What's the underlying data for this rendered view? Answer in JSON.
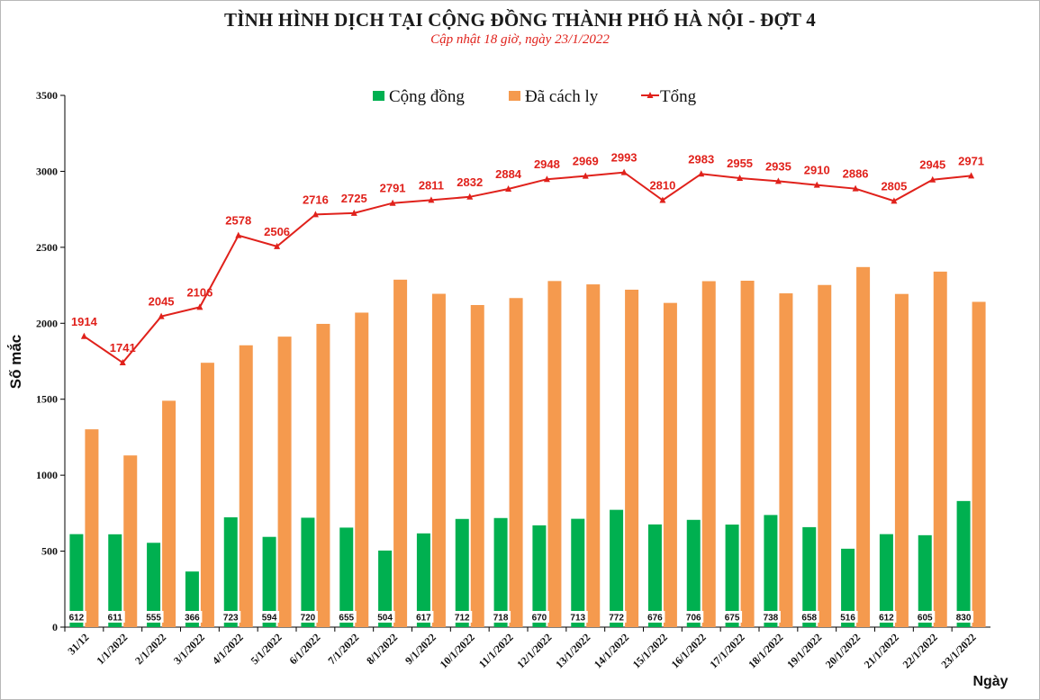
{
  "title": "TÌNH HÌNH DỊCH TẠI CỘNG ĐỒNG THÀNH PHỐ HÀ NỘI - ĐỢT 4",
  "subtitle": "Cập nhật 18 giờ, ngày  23/1/2022",
  "colors": {
    "cong_dong": "#00b050",
    "da_cach_ly": "#f59a4e",
    "tong": "#e0211b"
  },
  "chart_data": {
    "type": "bar",
    "ylabel": "Số mắc",
    "xlabel": "Ngày",
    "ylim": [
      0,
      3500
    ],
    "yticks": [
      0,
      500,
      1000,
      1500,
      2000,
      2500,
      3000,
      3500
    ],
    "grid": false,
    "legend_position": "top",
    "categories": [
      "31/12",
      "1/1/2022",
      "2/1/2022",
      "3/1/2022",
      "4/1/2022",
      "5/1/2022",
      "6/1/2022",
      "7/1/2022",
      "8/1/2022",
      "9/1/2022",
      "10/1/2022",
      "11/1/2022",
      "12/1/2022",
      "13/1/2022",
      "14/1/2022",
      "15/1/2022",
      "16/1/2022",
      "17/1/2022",
      "18/1/2022",
      "19/1/2022",
      "20/1/2022",
      "21/1/2022",
      "22/1/2022",
      "23/1/2022"
    ],
    "series": [
      {
        "name": "Cộng đồng",
        "type": "bar",
        "color": "#00b050",
        "values": [
          612,
          611,
          555,
          366,
          723,
          594,
          720,
          655,
          504,
          617,
          712,
          718,
          670,
          713,
          772,
          676,
          706,
          675,
          738,
          658,
          516,
          612,
          605,
          830
        ]
      },
      {
        "name": "Đã cách ly",
        "type": "bar",
        "color": "#f59a4e",
        "values": [
          1302,
          1130,
          1490,
          1740,
          1855,
          1912,
          1996,
          2070,
          2287,
          2194,
          2120,
          2166,
          2278,
          2256,
          2221,
          2134,
          2277,
          2280,
          2197,
          2252,
          2370,
          2193,
          2340,
          2141
        ]
      },
      {
        "name": "Tổng",
        "type": "line",
        "color": "#e0211b",
        "values": [
          1914,
          1741,
          2045,
          2106,
          2578,
          2506,
          2716,
          2725,
          2791,
          2811,
          2832,
          2884,
          2948,
          2969,
          2993,
          2810,
          2983,
          2955,
          2935,
          2910,
          2886,
          2805,
          2945,
          2971
        ]
      }
    ]
  }
}
